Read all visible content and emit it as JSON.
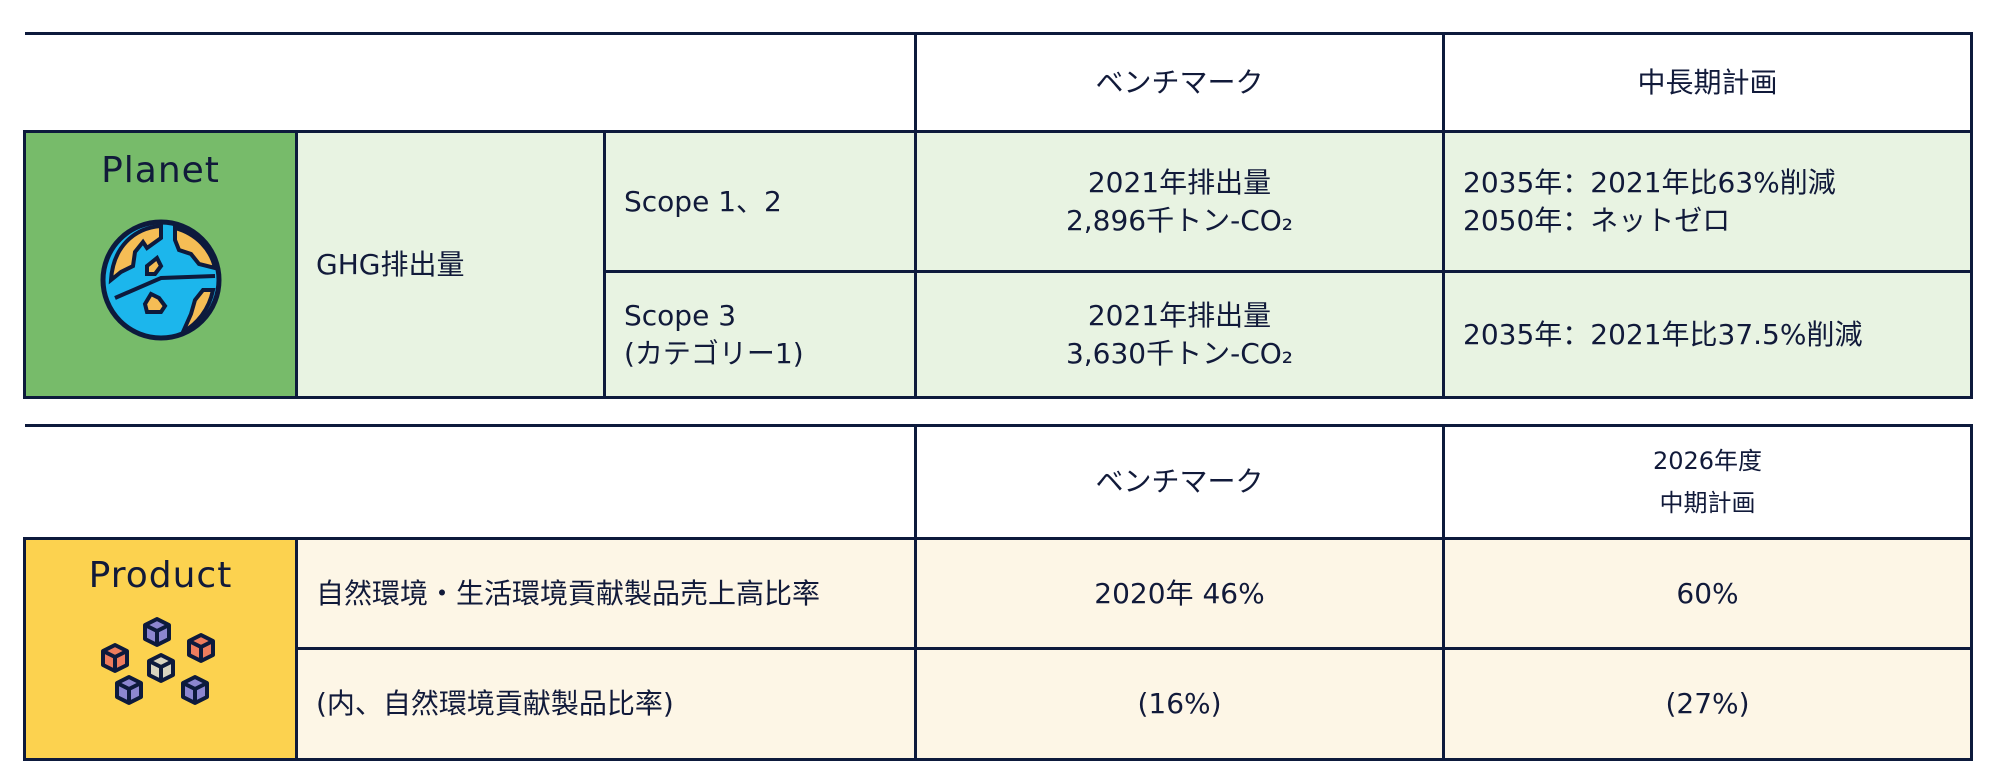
{
  "planet_table": {
    "header": {
      "benchmark": "ベンチマーク",
      "plan": "中長期計画"
    },
    "category": "Planet",
    "category_icon": "globe-icon",
    "metric": "GHG排出量",
    "rows": [
      {
        "scope": "Scope 1、2",
        "benchmark_line1": "2021年排出量",
        "benchmark_line2": "2,896千トン-CO₂",
        "plan_line1": "2035年：2021年比63%削減",
        "plan_line2": "2050年：ネットゼロ"
      },
      {
        "scope_line1": "Scope 3",
        "scope_line2": "(カテゴリー1)",
        "benchmark_line1": "2021年排出量",
        "benchmark_line2": "3,630千トン-CO₂",
        "plan_line1": "2035年：2021年比37.5%削減"
      }
    ],
    "colors": {
      "category_bg": "#77bb6a",
      "row_bg": "#e8f3e2"
    }
  },
  "product_table": {
    "header": {
      "benchmark": "ベンチマーク",
      "plan_line1": "2026年度",
      "plan_line2": "中期計画"
    },
    "category": "Product",
    "category_icon": "cubes-icon",
    "rows": [
      {
        "metric": "自然環境・生活環境貢献製品売上高比率",
        "benchmark": "2020年 46%",
        "plan": "60%"
      },
      {
        "metric": "(内、自然環境貢献製品比率)",
        "benchmark": "(16%)",
        "plan": "(27%)"
      }
    ],
    "colors": {
      "category_bg": "#fcd24f",
      "row_bg": "#fdf6e6"
    }
  }
}
